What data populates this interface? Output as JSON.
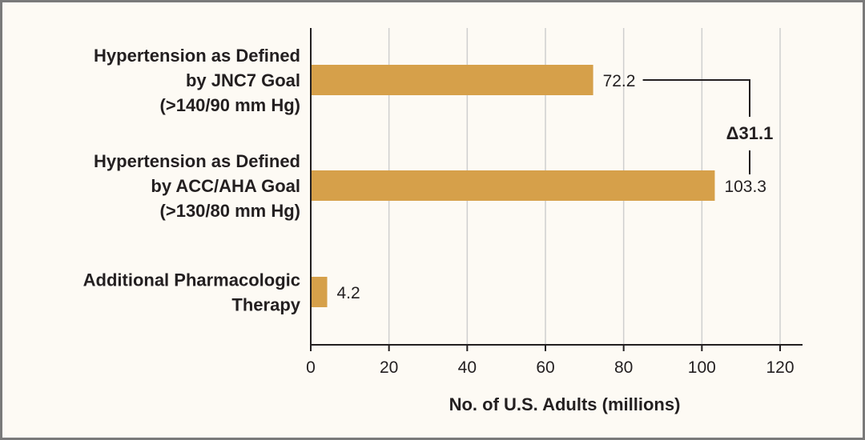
{
  "chart_data": {
    "type": "bar",
    "orientation": "horizontal",
    "categories": [
      [
        "Hypertension as Defined",
        "by JNC7 Goal",
        "(>140/90 mm Hg)"
      ],
      [
        "Hypertension as Defined",
        "by ACC/AHA Goal",
        "(>130/80 mm Hg)"
      ],
      [
        "Additional Pharmacologic",
        "Therapy"
      ]
    ],
    "values": [
      72.2,
      103.3,
      4.2
    ],
    "value_labels": [
      "72.2",
      "103.3",
      "4.2"
    ],
    "xlabel": "No. of U.S. Adults (millions)",
    "xlim": [
      0,
      120
    ],
    "xticks": [
      0,
      20,
      40,
      60,
      80,
      100,
      120
    ],
    "grid": true,
    "bar_color": "#d6a04a",
    "annotation": {
      "text": "Δ31.1",
      "between": [
        0,
        1
      ]
    }
  }
}
